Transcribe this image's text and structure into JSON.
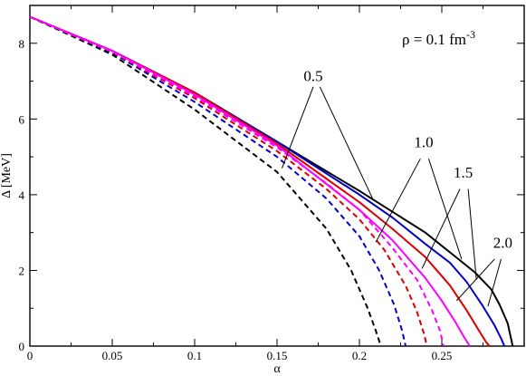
{
  "chart_data": {
    "type": "line",
    "xlabel": "α",
    "ylabel": "Δ [MeV]",
    "xlim": [
      0,
      0.3
    ],
    "ylim": [
      0,
      9
    ],
    "x_ticks": [
      0,
      0.05,
      0.1,
      0.15,
      0.2,
      0.25
    ],
    "x_tick_labels": [
      "0",
      "0.05",
      "0.1",
      "0.15",
      "0.2",
      "0.25"
    ],
    "y_ticks": [
      0,
      2,
      4,
      6,
      8
    ],
    "y_tick_labels": [
      "0",
      "2",
      "4",
      "6",
      "8"
    ],
    "grid": false,
    "legend": "none",
    "annotation": {
      "prefix": "ρ = 0.1 fm",
      "superscript": "-3"
    },
    "colors": {
      "0.5": "#000000",
      "1.0": "#0000cc",
      "1.5": "#dd0000",
      "2.0": "#ff00ff"
    },
    "series": [
      {
        "group": "0.5",
        "style": "solid",
        "color": "#000000",
        "x": [
          0,
          0.05,
          0.1,
          0.15,
          0.2,
          0.22,
          0.24,
          0.25,
          0.26,
          0.27,
          0.28,
          0.285,
          0.29,
          0.293
        ],
        "y": [
          8.7,
          7.8,
          6.7,
          5.4,
          4.1,
          3.55,
          3.0,
          2.65,
          2.3,
          1.95,
          1.5,
          1.1,
          0.6,
          0
        ]
      },
      {
        "group": "1.0",
        "style": "solid",
        "color": "#0000cc",
        "x": [
          0,
          0.05,
          0.1,
          0.15,
          0.2,
          0.22,
          0.24,
          0.255,
          0.265,
          0.275,
          0.282,
          0.286,
          0.288
        ],
        "y": [
          8.7,
          7.8,
          6.7,
          5.4,
          4.0,
          3.4,
          2.7,
          2.2,
          1.7,
          1.05,
          0.55,
          0.2,
          0
        ]
      },
      {
        "group": "1.5",
        "style": "solid",
        "color": "#dd0000",
        "x": [
          0,
          0.05,
          0.1,
          0.15,
          0.2,
          0.22,
          0.24,
          0.255,
          0.265,
          0.272,
          0.277,
          0.279
        ],
        "y": [
          8.7,
          7.8,
          6.7,
          5.35,
          3.8,
          3.1,
          2.35,
          1.6,
          0.95,
          0.45,
          0.1,
          0
        ]
      },
      {
        "group": "2.0",
        "style": "solid",
        "color": "#ff00ff",
        "x": [
          0,
          0.05,
          0.1,
          0.15,
          0.2,
          0.22,
          0.24,
          0.25,
          0.258,
          0.264,
          0.267
        ],
        "y": [
          8.7,
          7.8,
          6.65,
          5.3,
          3.6,
          2.8,
          1.8,
          1.2,
          0.65,
          0.2,
          0
        ]
      },
      {
        "group": "0.5",
        "style": "dashed",
        "color": "#000000",
        "x": [
          0,
          0.05,
          0.1,
          0.15,
          0.18,
          0.195,
          0.205,
          0.21,
          0.213
        ],
        "y": [
          8.7,
          7.7,
          6.25,
          4.6,
          3.1,
          2.0,
          1.0,
          0.4,
          0
        ]
      },
      {
        "group": "1.0",
        "style": "dashed",
        "color": "#0000cc",
        "x": [
          0,
          0.05,
          0.1,
          0.15,
          0.18,
          0.2,
          0.212,
          0.221,
          0.226,
          0.228
        ],
        "y": [
          8.7,
          7.75,
          6.45,
          5.0,
          3.9,
          2.9,
          2.0,
          1.1,
          0.4,
          0
        ]
      },
      {
        "group": "1.5",
        "style": "dashed",
        "color": "#dd0000",
        "x": [
          0,
          0.05,
          0.1,
          0.15,
          0.18,
          0.2,
          0.215,
          0.228,
          0.235,
          0.239,
          0.241
        ],
        "y": [
          8.7,
          7.77,
          6.55,
          5.15,
          4.15,
          3.35,
          2.55,
          1.6,
          0.9,
          0.35,
          0
        ]
      },
      {
        "group": "2.0",
        "style": "dashed",
        "color": "#ff00ff",
        "x": [
          0,
          0.05,
          0.1,
          0.15,
          0.18,
          0.2,
          0.22,
          0.235,
          0.244,
          0.249,
          0.251
        ],
        "y": [
          8.7,
          7.78,
          6.6,
          5.25,
          4.3,
          3.6,
          2.6,
          1.75,
          0.95,
          0.4,
          0
        ]
      }
    ],
    "labels": [
      {
        "text": "0.5",
        "x": 0.172,
        "y": 7.0,
        "pointers": [
          {
            "from": [
              0.172,
              6.85
            ],
            "to": [
              0.153,
              4.7
            ]
          },
          {
            "from": [
              0.176,
              6.85
            ],
            "to": [
              0.208,
              3.9
            ]
          }
        ]
      },
      {
        "text": "1.0",
        "x": 0.239,
        "y": 5.25,
        "pointers": [
          {
            "from": [
              0.237,
              4.95
            ],
            "to": [
              0.21,
              2.75
            ]
          },
          {
            "from": [
              0.242,
              4.95
            ],
            "to": [
              0.262,
              2.3
            ]
          }
        ]
      },
      {
        "text": "1.5",
        "x": 0.263,
        "y": 4.45,
        "pointers": [
          {
            "from": [
              0.261,
              4.15
            ],
            "to": [
              0.238,
              2.05
            ]
          },
          {
            "from": [
              0.266,
              4.15
            ],
            "to": [
              0.271,
              1.75
            ]
          }
        ]
      },
      {
        "text": "2.0",
        "x": 0.287,
        "y": 2.6,
        "pointers": [
          {
            "from": [
              0.282,
              2.3
            ],
            "to": [
              0.259,
              1.2
            ]
          },
          {
            "from": [
              0.286,
              2.3
            ],
            "to": [
              0.278,
              1.05
            ]
          }
        ]
      }
    ]
  }
}
